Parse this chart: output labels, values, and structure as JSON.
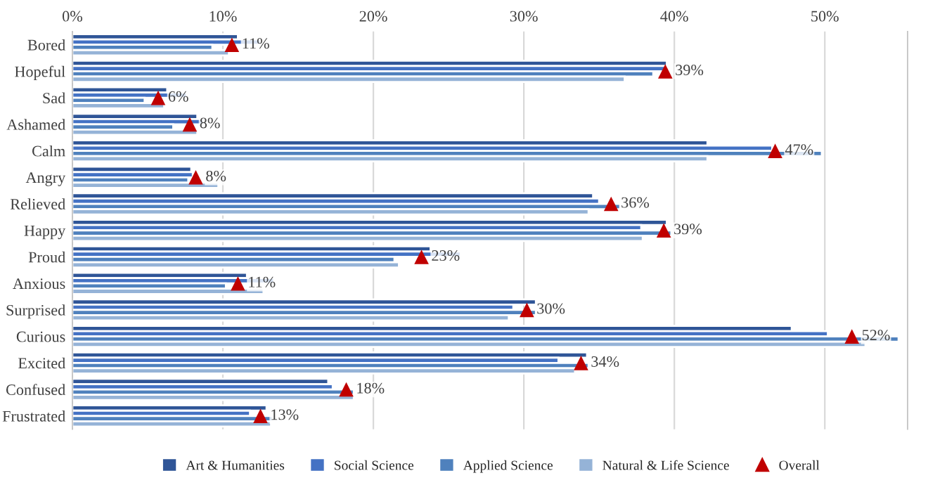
{
  "chart_data": {
    "type": "bar",
    "orientation": "horizontal",
    "categories": [
      "Bored",
      "Hopeful",
      "Sad",
      "Ashamed",
      "Calm",
      "Angry",
      "Relieved",
      "Happy",
      "Proud",
      "Anxious",
      "Surprised",
      "Curious",
      "Excited",
      "Confused",
      "Frustrated"
    ],
    "series": [
      {
        "name": "Art & Humanities",
        "color": "#2f5597",
        "values": [
          11.0,
          39.5,
          6.3,
          8.3,
          42.2,
          7.9,
          34.6,
          39.5,
          23.8,
          11.6,
          30.8,
          47.8,
          34.2,
          17.0,
          12.9
        ]
      },
      {
        "name": "Social Science",
        "color": "#4472c4",
        "values": [
          12.5,
          39.5,
          7.6,
          8.7,
          46.5,
          8.0,
          35.0,
          37.8,
          25.8,
          13.4,
          29.3,
          50.2,
          32.3,
          17.3,
          11.8
        ]
      },
      {
        "name": "Applied Science",
        "color": "#4f81bd",
        "values": [
          9.3,
          38.6,
          4.8,
          6.7,
          49.8,
          7.7,
          36.4,
          39.8,
          21.4,
          10.2,
          30.8,
          54.9,
          34.3,
          18.7,
          13.3
        ]
      },
      {
        "name": "Natural & Life Science",
        "color": "#95b3d7",
        "values": [
          10.4,
          36.7,
          6.1,
          8.3,
          42.2,
          9.7,
          34.3,
          37.9,
          21.7,
          12.7,
          29.0,
          52.7,
          33.4,
          18.7,
          13.2
        ]
      },
      {
        "name": "Overall",
        "type": "scatter",
        "color": "#c00000",
        "values": [
          10.6,
          39.4,
          5.7,
          7.8,
          46.7,
          8.2,
          35.8,
          39.3,
          23.2,
          11.0,
          30.2,
          51.8,
          33.8,
          18.2,
          12.5
        ],
        "value_labels": [
          "11%",
          "39%",
          "6%",
          "8%",
          "47%",
          "8%",
          "36%",
          "39%",
          "23%",
          "11%",
          "30%",
          "52%",
          "34%",
          "18%",
          "13%"
        ]
      }
    ],
    "marker": "triangle",
    "xlim": [
      0,
      55.5
    ],
    "xticks": [
      {
        "value": 0,
        "label": "0%"
      },
      {
        "value": 10,
        "label": "10%"
      },
      {
        "value": 20,
        "label": "20%"
      },
      {
        "value": 30,
        "label": "30%"
      },
      {
        "value": 40,
        "label": "40%"
      },
      {
        "value": 50,
        "label": "50%"
      }
    ],
    "grid": "x",
    "legend": "bottom"
  }
}
